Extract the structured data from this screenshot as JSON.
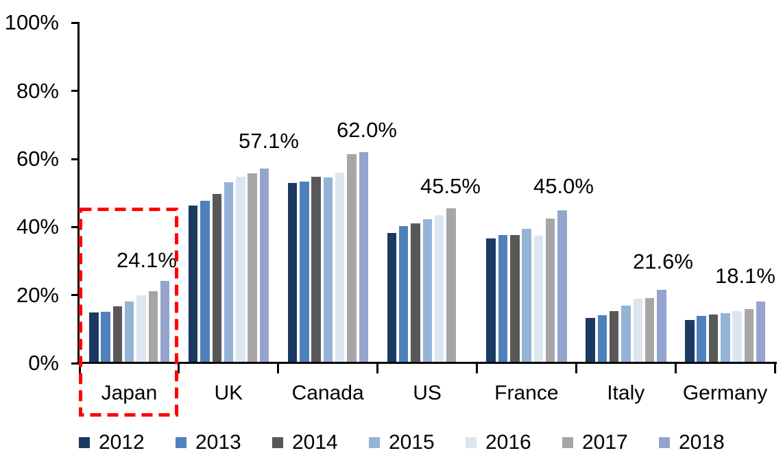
{
  "chart_data": {
    "type": "bar",
    "title": "",
    "categories": [
      "Japan",
      "UK",
      "Canada",
      "US",
      "France",
      "Italy",
      "Germany"
    ],
    "series": [
      {
        "name": "2012",
        "color": "#1B3A63",
        "values": [
          14.9,
          46.3,
          53.0,
          38.3,
          36.6,
          13.3,
          12.6
        ]
      },
      {
        "name": "2013",
        "color": "#4F81BD",
        "values": [
          15.1,
          47.7,
          53.3,
          40.2,
          37.7,
          14.2,
          14.0
        ]
      },
      {
        "name": "2014",
        "color": "#585858",
        "values": [
          16.7,
          49.8,
          54.8,
          41.0,
          37.7,
          15.4,
          14.4
        ]
      },
      {
        "name": "2015",
        "color": "#95B3D7",
        "values": [
          18.1,
          53.1,
          54.5,
          42.2,
          39.5,
          16.9,
          14.8
        ]
      },
      {
        "name": "2016",
        "color": "#DCE6F1",
        "values": [
          20.0,
          54.8,
          56.0,
          43.5,
          37.5,
          19.0,
          15.4
        ]
      },
      {
        "name": "2017",
        "color": "#A6A6A6",
        "values": [
          21.1,
          55.7,
          61.4,
          45.5,
          42.4,
          19.2,
          15.9
        ]
      },
      {
        "name": "2018",
        "color": "#95A4CF",
        "values": [
          24.1,
          57.1,
          62.0,
          null,
          45.0,
          21.6,
          18.1
        ]
      }
    ],
    "group_top_labels": [
      "24.1%",
      "57.1%",
      "62.0%",
      "45.5%",
      "45.0%",
      "21.6%",
      "18.1%"
    ],
    "y_axis": {
      "min": 0,
      "max": 100,
      "tick_values": [
        0,
        20,
        40,
        60,
        80,
        100
      ],
      "tick_labels": [
        "0%",
        "20%",
        "40%",
        "60%",
        "80%",
        "100%"
      ]
    },
    "grid": false,
    "legend_position": "bottom",
    "highlight_box": {
      "category": "Japan",
      "color": "#FF0000",
      "style": "dashed"
    },
    "axis_color": "#000000",
    "note": "US group has no 2018 bar"
  }
}
